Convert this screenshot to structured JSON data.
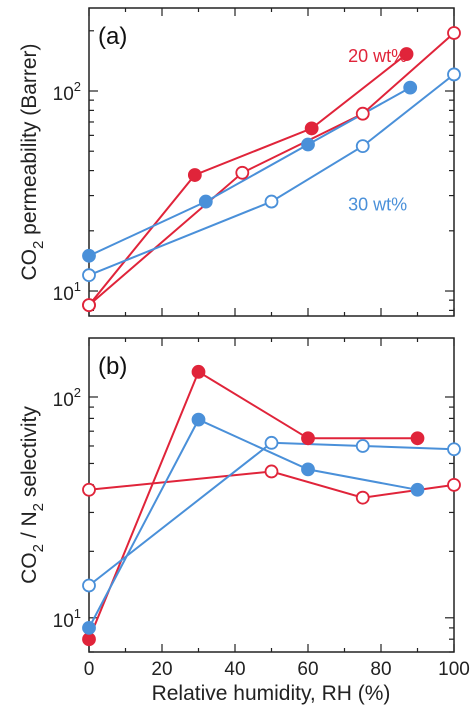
{
  "figure": {
    "xlabel": "Relative humidity, RH (%)"
  },
  "chart_data": [
    {
      "type": "line",
      "panel_label": "(a)",
      "ylabel_main": "CO",
      "ylabel_sub": "2",
      "ylabel_rest": " permeability (Barrer)",
      "yscale": "log",
      "xlim": [
        0,
        100
      ],
      "ylim": [
        7.5,
        260
      ],
      "xticks": [
        0,
        20,
        40,
        60,
        80,
        100
      ],
      "yticks": [
        {
          "value": 10,
          "base": "10",
          "exp": "1"
        },
        {
          "value": 100,
          "base": "10",
          "exp": "2"
        }
      ],
      "grid": false,
      "annotations": [
        {
          "text": "20 wt%",
          "x": 71,
          "y": 150,
          "color": "#e0243a"
        },
        {
          "text": "30 wt%",
          "x": 71,
          "y": 27,
          "color": "#4a90d9"
        }
      ],
      "series": [
        {
          "color": "#e0243a",
          "marker": "filled",
          "x": [
            0,
            29,
            61,
            87
          ],
          "y": [
            8.5,
            38,
            65,
            153
          ]
        },
        {
          "color": "#e0243a",
          "marker": "open",
          "x": [
            0,
            42,
            75,
            100
          ],
          "y": [
            8.5,
            39,
            77,
            195
          ]
        },
        {
          "color": "#4a90d9",
          "marker": "filled",
          "x": [
            0,
            32,
            60,
            88
          ],
          "y": [
            15,
            28,
            54,
            104
          ]
        },
        {
          "color": "#4a90d9",
          "marker": "open",
          "x": [
            0,
            50,
            75,
            100
          ],
          "y": [
            12,
            28,
            53,
            121
          ]
        }
      ]
    },
    {
      "type": "line",
      "panel_label": "(b)",
      "ylabel_main": "CO",
      "ylabel_sub": "2",
      "ylabel_mid": " / N",
      "ylabel_sub2": "2",
      "ylabel_rest": " selectivity",
      "yscale": "log",
      "xlim": [
        0,
        100
      ],
      "ylim": [
        7,
        185
      ],
      "xticks": [
        0,
        20,
        40,
        60,
        80,
        100
      ],
      "yticks": [
        {
          "value": 10,
          "base": "10",
          "exp": "1"
        },
        {
          "value": 100,
          "base": "10",
          "exp": "2"
        }
      ],
      "grid": false,
      "series": [
        {
          "color": "#e0243a",
          "marker": "filled",
          "x": [
            0,
            30,
            60,
            90
          ],
          "y": [
            8,
            130,
            65,
            65
          ]
        },
        {
          "color": "#e0243a",
          "marker": "open",
          "x": [
            0,
            50,
            75,
            100
          ],
          "y": [
            38,
            46,
            35,
            40
          ]
        },
        {
          "color": "#4a90d9",
          "marker": "filled",
          "x": [
            0,
            30,
            60,
            90
          ],
          "y": [
            9,
            79,
            47,
            38
          ]
        },
        {
          "color": "#4a90d9",
          "marker": "open",
          "x": [
            0,
            50,
            75,
            100
          ],
          "y": [
            14,
            62,
            60,
            58
          ]
        }
      ]
    }
  ]
}
